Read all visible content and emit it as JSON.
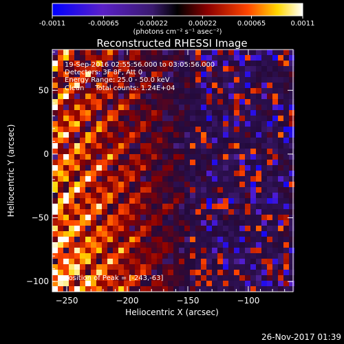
{
  "chart_data": {
    "type": "heatmap",
    "title": "Reconstructed RHESSI Image",
    "xlabel": "Heliocentric X (arcsec)",
    "ylabel": "Heliocentric Y (arcsec)",
    "xlim": [
      -262,
      -63
    ],
    "ylim": [
      -108,
      82
    ],
    "x_ticks": [
      -250,
      -200,
      -150,
      -100
    ],
    "y_ticks": [
      -100,
      -50,
      0,
      50
    ],
    "grid": false,
    "colorbar": {
      "range": [
        -0.0011,
        0.0011
      ],
      "tick_labels": [
        "-0.0011",
        "-0.00065",
        "-0.00022",
        "0.00022",
        "0.00065",
        "0.0011"
      ],
      "unit_line": "(photons cm⁻² s⁻¹ asec⁻²)",
      "colors": [
        "#0000ff",
        "#7b1fa2",
        "#3a1a6e",
        "#000000",
        "#8b0000",
        "#ff4500",
        "#ffd700",
        "#ffffff"
      ]
    },
    "annotations": [
      "19-Sep-2016 02:55:56.000 to 03:05:56.000",
      "Detectors: 3F 8F, Att 0",
      "Energy Range: 25.0 - 50.0 keV",
      "Clean     Total counts: 1.24E+04"
    ],
    "peak_label": "Position of Peak = [-243,-63]",
    "peak_position": [
      -243,
      -63
    ]
  },
  "footer": {
    "timestamp": "26-Nov-2017 01:39"
  }
}
